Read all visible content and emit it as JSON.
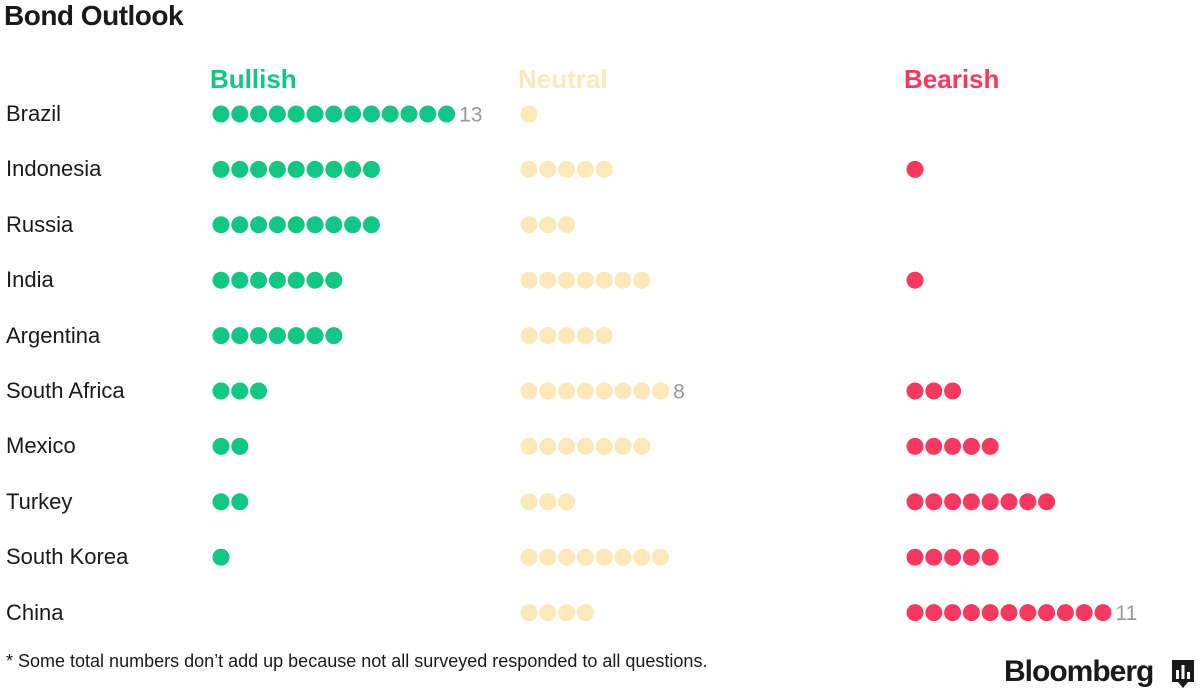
{
  "title": "Bond Outlook",
  "footnote": "* Some total numbers don’t add up because not all surveyed responded to all questions.",
  "brand": "Bloomberg",
  "colors": {
    "bullish": "#12c684",
    "neutral": "#fde8b9",
    "bearish": "#f7395f",
    "count_label": "#999999"
  },
  "chart_data": {
    "type": "table",
    "title": "Bond Outlook",
    "columns": [
      {
        "key": "bullish",
        "label": "Bullish"
      },
      {
        "key": "neutral",
        "label": "Neutral"
      },
      {
        "key": "bearish",
        "label": "Bearish"
      }
    ],
    "rows": [
      {
        "country": "Brazil",
        "bullish": 13,
        "neutral": 1,
        "bearish": 0
      },
      {
        "country": "Indonesia",
        "bullish": 9,
        "neutral": 5,
        "bearish": 1
      },
      {
        "country": "Russia",
        "bullish": 9,
        "neutral": 3,
        "bearish": 0
      },
      {
        "country": "India",
        "bullish": 7,
        "neutral": 7,
        "bearish": 1
      },
      {
        "country": "Argentina",
        "bullish": 7,
        "neutral": 5,
        "bearish": 0
      },
      {
        "country": "South Africa",
        "bullish": 3,
        "neutral": 8,
        "bearish": 3
      },
      {
        "country": "Mexico",
        "bullish": 2,
        "neutral": 7,
        "bearish": 5
      },
      {
        "country": "Turkey",
        "bullish": 2,
        "neutral": 3,
        "bearish": 8
      },
      {
        "country": "South Korea",
        "bullish": 1,
        "neutral": 8,
        "bearish": 5
      },
      {
        "country": "China",
        "bullish": 0,
        "neutral": 4,
        "bearish": 11
      }
    ],
    "count_labels": [
      {
        "country": "Brazil",
        "column": "bullish",
        "text": "13"
      },
      {
        "country": "South Africa",
        "column": "neutral",
        "text": "8"
      },
      {
        "country": "China",
        "column": "bearish",
        "text": "11"
      }
    ]
  }
}
